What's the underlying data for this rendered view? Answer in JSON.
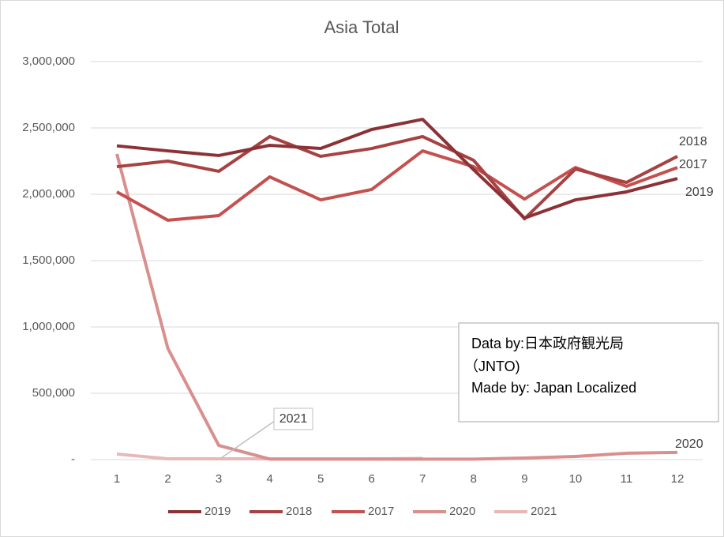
{
  "chart_data": {
    "type": "line",
    "title": "Asia Total",
    "categories": [
      "1",
      "2",
      "3",
      "4",
      "5",
      "6",
      "7",
      "8",
      "9",
      "10",
      "11",
      "12"
    ],
    "series": [
      {
        "name": "2019",
        "color": "#8c3236",
        "values": [
          2365000,
          2327000,
          2292000,
          2369000,
          2345000,
          2488000,
          2565000,
          2185000,
          1821000,
          1958000,
          2018000,
          2119000
        ]
      },
      {
        "name": "2018",
        "color": "#a84142",
        "values": [
          2208000,
          2250000,
          2173000,
          2435000,
          2286000,
          2345000,
          2435000,
          2256000,
          1815000,
          2190000,
          2089000,
          2286000
        ]
      },
      {
        "name": "2017",
        "color": "#c4504f",
        "values": [
          2018000,
          1804000,
          1839000,
          2131000,
          1958000,
          2036000,
          2327000,
          2208000,
          1964000,
          2202000,
          2060000,
          2202000
        ]
      },
      {
        "name": "2020",
        "color": "#d88f8d",
        "values": [
          2304000,
          839000,
          107000,
          4000,
          4000,
          4000,
          4000,
          4000,
          12000,
          24000,
          48000,
          54000
        ]
      },
      {
        "name": "2021",
        "color": "#e6b8b7",
        "values": [
          42000,
          6000,
          6000,
          6000,
          6000,
          6000,
          9000,
          null,
          null,
          null,
          null,
          null
        ]
      }
    ],
    "ylim": [
      0,
      3000000
    ],
    "yticks": [
      {
        "value": 0,
        "label": "-"
      },
      {
        "value": 500000,
        "label": "500,000"
      },
      {
        "value": 1000000,
        "label": "1,000,000"
      },
      {
        "value": 1500000,
        "label": "1,500,000"
      },
      {
        "value": 2000000,
        "label": "2,000,000"
      },
      {
        "value": 2500000,
        "label": "2,500,000"
      },
      {
        "value": 3000000,
        "label": "3,000,000"
      }
    ],
    "grid": true,
    "legend": "bottom",
    "source_note": [
      "Data by:日本政府観光局",
      "（JNTO)",
      "Made by: Japan Localized"
    ]
  }
}
